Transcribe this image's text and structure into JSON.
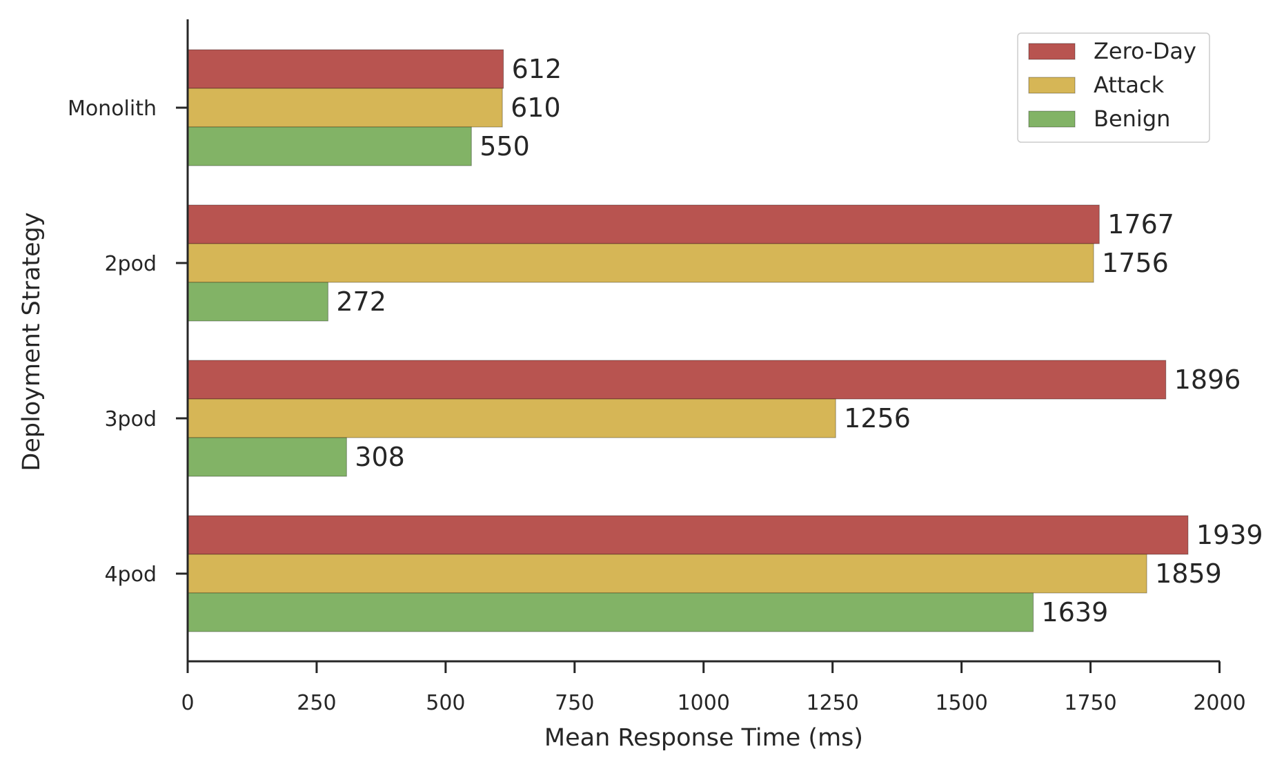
{
  "chart_data": {
    "type": "bar",
    "orientation": "horizontal",
    "categories": [
      "Monolith",
      "2pod",
      "3pod",
      "4pod"
    ],
    "series": [
      {
        "name": "Zero-Day",
        "color": "#b85450",
        "values": [
          612,
          1767,
          1896,
          1939
        ]
      },
      {
        "name": "Attack",
        "color": "#d6b656",
        "values": [
          610,
          1756,
          1256,
          1859
        ]
      },
      {
        "name": "Benign",
        "color": "#82b366",
        "values": [
          550,
          272,
          308,
          1639
        ]
      }
    ],
    "xlabel": "Mean Response Time (ms)",
    "ylabel": "Deployment Strategy",
    "xlim": [
      0,
      2000
    ],
    "xticks": [
      "0",
      "250",
      "500",
      "750",
      "1000",
      "1250",
      "1500",
      "1750",
      "2000"
    ],
    "grid": false,
    "legend_position": "top-right",
    "data_labels": true
  }
}
